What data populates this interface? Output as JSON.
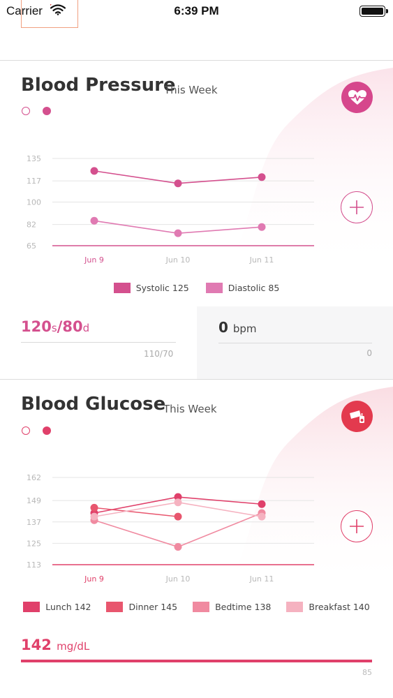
{
  "status_bar": {
    "carrier": "Carrier",
    "time": "6:39 PM"
  },
  "blood_pressure": {
    "title": "Blood Pressure",
    "subtitle": "This Week",
    "icon": "heart-pulse-icon",
    "accent_color": "#d4508e",
    "readout": {
      "systolic_value": "120",
      "systolic_unit": "s",
      "separator": "/",
      "diastolic_value": "80",
      "diastolic_unit": "d",
      "reference": "110/70"
    },
    "heart_rate": {
      "value": "0",
      "unit": "bpm",
      "reference": "0"
    },
    "legend": [
      {
        "label": "Systolic 125",
        "color": "#d4508e"
      },
      {
        "label": "Diastolic 85",
        "color": "#e07ab2"
      }
    ]
  },
  "blood_glucose": {
    "title": "Blood Glucose",
    "subtitle": "This Week",
    "icon": "glucose-meter-icon",
    "accent_color": "#e0406a",
    "readout": {
      "value": "142",
      "unit": "mg/dL",
      "reference": "85",
      "progress": 1.0
    },
    "legend": [
      {
        "label": "Lunch 142",
        "color": "#e0406a"
      },
      {
        "label": "Dinner 145",
        "color": "#e8566e"
      },
      {
        "label": "Bedtime 138",
        "color": "#f08aa0"
      },
      {
        "label": "Breakfast 140",
        "color": "#f5b2c0"
      }
    ]
  },
  "chart_data": [
    {
      "type": "line",
      "categories": [
        "Jun 9",
        "Jun 10",
        "Jun 11"
      ],
      "y_ticks": [
        135,
        117,
        100,
        82,
        65
      ],
      "ylim": [
        65,
        135
      ],
      "series": [
        {
          "name": "Systolic",
          "values": [
            125,
            115,
            120
          ],
          "color": "#d4508e"
        },
        {
          "name": "Diastolic",
          "values": [
            85,
            75,
            80
          ],
          "color": "#e07ab2"
        }
      ]
    },
    {
      "type": "line",
      "categories": [
        "Jun 9",
        "Jun 10",
        "Jun 11"
      ],
      "y_ticks": [
        162,
        149,
        137,
        125,
        113
      ],
      "ylim": [
        113,
        162
      ],
      "series": [
        {
          "name": "Lunch",
          "values": [
            142,
            151,
            147
          ],
          "color": "#e0406a"
        },
        {
          "name": "Dinner",
          "values": [
            145,
            140,
            null
          ],
          "color": "#e8566e"
        },
        {
          "name": "Bedtime",
          "values": [
            138,
            123,
            142
          ],
          "color": "#f08aa0"
        },
        {
          "name": "Breakfast",
          "values": [
            140,
            148,
            140
          ],
          "color": "#f5b2c0"
        }
      ]
    }
  ]
}
